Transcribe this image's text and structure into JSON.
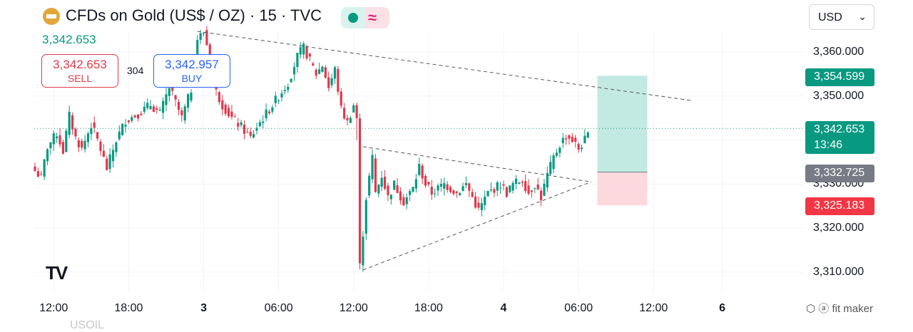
{
  "header": {
    "title": "CFDs on Gold (US$ / OZ) · 15 · TVC",
    "last_price": "3,342.653",
    "market_status_icon": "green-dot-icon",
    "delay_icon": "wave-icon"
  },
  "trade": {
    "sell_price": "3,342.653",
    "sell_label": "SELL",
    "spread": "304",
    "buy_price": "3,342.957",
    "buy_label": "BUY"
  },
  "currency_selector": {
    "value": "USD"
  },
  "price_tags": {
    "target": "3,354.599",
    "current": "3,342.653",
    "countdown": "13:46",
    "entry": "3,332.725",
    "stop": "3,325.183"
  },
  "watermark": "fit maker",
  "bottom_text": "USOIL",
  "colors": {
    "up": "#089981",
    "down": "#e0394b",
    "profit": "#b7e6dd",
    "loss": "#fdd2d8",
    "accent": "#2962ff"
  },
  "chart_data": {
    "type": "candlestick",
    "title": "CFDs on Gold (US$ / OZ) · 15 · TVC",
    "y_ticks": [
      "3,310.000",
      "3,320.000",
      "3,330.000",
      "3,340.000",
      "3,350.000",
      "3,360.000"
    ],
    "x_ticks": [
      {
        "label": "12:00",
        "bar": 6,
        "bold": false
      },
      {
        "label": "18:00",
        "bar": 30,
        "bold": false
      },
      {
        "label": "3",
        "bar": 54,
        "bold": true
      },
      {
        "label": "06:00",
        "bar": 78,
        "bold": false
      },
      {
        "label": "12:00",
        "bar": 102,
        "bold": false
      },
      {
        "label": "18:00",
        "bar": 126,
        "bold": false
      },
      {
        "label": "4",
        "bar": 150,
        "bold": true
      },
      {
        "label": "06:00",
        "bar": 174,
        "bold": false
      },
      {
        "label": "12:00",
        "bar": 198,
        "bold": false
      },
      {
        "label": "6",
        "bar": 220,
        "bold": true
      }
    ],
    "ylim": [
      3306.5,
      3365.5
    ],
    "current_price": 3342.653,
    "series_close_anchors": [
      [
        0,
        3333
      ],
      [
        2,
        3331.5
      ],
      [
        4,
        3338.5
      ],
      [
        7,
        3341.5
      ],
      [
        9,
        3337.5
      ],
      [
        11,
        3345.5
      ],
      [
        13,
        3340.5
      ],
      [
        15,
        3338
      ],
      [
        18,
        3343.5
      ],
      [
        20,
        3340
      ],
      [
        23,
        3333.5
      ],
      [
        26,
        3340
      ],
      [
        29,
        3344.5
      ],
      [
        33,
        3346
      ],
      [
        37,
        3348
      ],
      [
        40,
        3346
      ],
      [
        43,
        3352
      ],
      [
        47,
        3345
      ],
      [
        50,
        3351.5
      ],
      [
        52,
        3363
      ],
      [
        54,
        3364.5
      ],
      [
        56,
        3359
      ],
      [
        58,
        3351
      ],
      [
        60,
        3348
      ],
      [
        63,
        3345
      ],
      [
        66,
        3343
      ],
      [
        69,
        3340.5
      ],
      [
        71,
        3343
      ],
      [
        74,
        3346
      ],
      [
        77,
        3349
      ],
      [
        81,
        3353
      ],
      [
        84,
        3359
      ],
      [
        86,
        3361
      ],
      [
        88,
        3358
      ],
      [
        90,
        3355
      ],
      [
        92,
        3357
      ],
      [
        94,
        3352
      ],
      [
        96,
        3356
      ],
      [
        98,
        3347
      ],
      [
        100,
        3344
      ],
      [
        102,
        3348
      ],
      [
        103,
        3345
      ],
      [
        104,
        3311
      ],
      [
        106,
        3327
      ],
      [
        108,
        3336
      ],
      [
        109,
        3328
      ],
      [
        111,
        3332
      ],
      [
        113,
        3327
      ],
      [
        115,
        3330
      ],
      [
        118,
        3326
      ],
      [
        121,
        3329
      ],
      [
        123,
        3334
      ],
      [
        125,
        3330
      ],
      [
        127,
        3328
      ],
      [
        131,
        3330
      ],
      [
        135,
        3328
      ],
      [
        138,
        3330
      ],
      [
        140,
        3327
      ],
      [
        142,
        3324
      ],
      [
        145,
        3328
      ],
      [
        147,
        3329
      ],
      [
        149,
        3330
      ],
      [
        151,
        3328
      ],
      [
        153,
        3330
      ],
      [
        156,
        3331
      ],
      [
        158,
        3328
      ],
      [
        160,
        3330
      ],
      [
        162,
        3327
      ],
      [
        164,
        3332
      ],
      [
        166,
        3336
      ],
      [
        168,
        3339
      ],
      [
        170,
        3341
      ],
      [
        172,
        3340
      ],
      [
        174,
        3338
      ],
      [
        176,
        3340
      ],
      [
        177,
        3341
      ]
    ],
    "drawings": {
      "upper_trendline": {
        "from": [
          52,
          3364.7
        ],
        "to": [
          210,
          3349.0
        ]
      },
      "triangle": [
        [
          105,
          3338.5
        ],
        [
          105,
          3310.5
        ],
        [
          178,
          3330.5
        ]
      ],
      "position": {
        "entry": 3332.725,
        "target": 3354.599,
        "stop": 3325.183,
        "start_bar": 180,
        "end_bar": 196
      }
    }
  }
}
